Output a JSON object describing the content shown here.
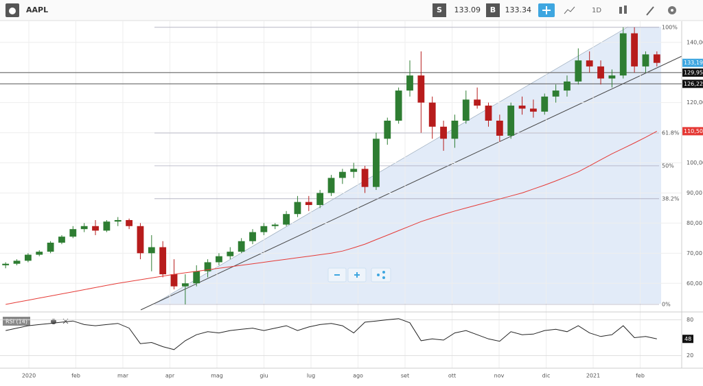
{
  "toolbar": {
    "ticker": "AAPL",
    "sell": {
      "label": "S",
      "price": "133.09"
    },
    "buy": {
      "label": "B",
      "price": "133.34"
    },
    "interval": "1D"
  },
  "chart_data": {
    "type": "candlestick",
    "up_color": "#2e7d32",
    "down_color": "#b71c1c",
    "candles": [
      [
        66,
        67,
        65,
        66.5
      ],
      [
        66.5,
        68,
        66,
        67.5
      ],
      [
        67.5,
        70,
        67,
        69.5
      ],
      [
        69.5,
        71,
        69,
        70.5
      ],
      [
        70.5,
        74,
        70,
        73.5
      ],
      [
        73.5,
        76,
        73,
        75.5
      ],
      [
        75.5,
        79,
        75,
        78
      ],
      [
        78,
        80,
        77,
        79
      ],
      [
        79,
        81,
        76,
        77.5
      ],
      [
        77.5,
        81,
        77,
        80.5
      ],
      [
        80.5,
        82,
        79,
        81
      ],
      [
        81,
        81.5,
        78,
        79
      ],
      [
        79,
        80,
        68,
        70
      ],
      [
        70,
        76,
        64,
        72
      ],
      [
        72,
        74,
        62,
        63
      ],
      [
        63,
        68,
        58,
        59
      ],
      [
        59,
        63,
        53,
        60
      ],
      [
        60,
        66,
        59,
        64
      ],
      [
        64,
        68,
        62,
        67
      ],
      [
        67,
        70,
        66,
        69
      ],
      [
        69,
        72,
        68,
        70.5
      ],
      [
        70.5,
        75,
        70,
        74
      ],
      [
        74,
        78,
        73,
        77
      ],
      [
        77,
        80,
        76,
        79
      ],
      [
        79,
        80,
        78,
        79.5
      ],
      [
        79.5,
        84,
        79,
        83
      ],
      [
        83,
        89,
        82,
        87
      ],
      [
        87,
        89,
        84,
        86
      ],
      [
        86,
        91,
        85,
        90
      ],
      [
        90,
        96,
        89,
        95
      ],
      [
        95,
        98,
        93,
        97
      ],
      [
        97,
        100,
        95,
        98
      ],
      [
        98,
        99,
        90,
        92
      ],
      [
        92,
        110,
        91,
        108
      ],
      [
        108,
        115,
        106,
        114
      ],
      [
        114,
        125,
        113,
        124
      ],
      [
        124,
        134,
        122,
        129
      ],
      [
        129,
        137,
        110,
        120
      ],
      [
        120,
        122,
        108,
        112
      ],
      [
        112,
        114,
        104,
        108
      ],
      [
        108,
        116,
        105,
        114
      ],
      [
        114,
        124,
        113,
        121
      ],
      [
        121,
        125,
        118,
        119
      ],
      [
        119,
        120,
        112,
        114
      ],
      [
        114,
        116,
        107,
        109
      ],
      [
        109,
        120,
        108,
        119
      ],
      [
        119,
        122,
        116,
        118
      ],
      [
        118,
        121,
        115,
        117
      ],
      [
        117,
        123,
        116,
        122
      ],
      [
        122,
        126,
        120,
        124
      ],
      [
        124,
        129,
        122,
        127
      ],
      [
        127,
        138,
        126,
        134
      ],
      [
        134,
        137,
        130,
        132
      ],
      [
        132,
        134,
        126,
        128
      ],
      [
        128,
        131,
        125,
        129
      ],
      [
        129,
        145,
        128,
        143
      ],
      [
        143,
        145,
        130,
        132
      ],
      [
        132,
        137,
        130,
        136
      ],
      [
        136,
        137,
        132,
        133.19
      ]
    ],
    "ylim": [
      50.5,
      147
    ],
    "yticks": [
      {
        "value": 60,
        "label": "60,00"
      },
      {
        "value": 70,
        "label": "70,00"
      },
      {
        "value": 80,
        "label": "80,00"
      },
      {
        "value": 90,
        "label": "90,00"
      },
      {
        "value": 100,
        "label": "100,00"
      },
      {
        "value": 110,
        "label": "110,00"
      },
      {
        "value": 120,
        "label": "120,00"
      },
      {
        "value": 130,
        "label": "130,00"
      },
      {
        "value": 140,
        "label": "140,00"
      }
    ],
    "x_labels": [
      "2020",
      "feb",
      "mar",
      "apr",
      "mag",
      "giu",
      "lug",
      "ago",
      "set",
      "ott",
      "nov",
      "dic",
      "2021",
      "feb"
    ],
    "ma": {
      "color": "#e53935",
      "values": [
        53,
        53.7,
        54.4,
        55.1,
        55.8,
        56.5,
        57.2,
        57.9,
        58.6,
        59.3,
        60,
        60.6,
        61.2,
        61.8,
        62.4,
        63,
        63.5,
        64,
        64.5,
        65,
        65.5,
        66,
        66.5,
        67,
        67.5,
        68,
        68.5,
        69,
        69.5,
        70,
        70.7,
        71.8,
        73,
        74.5,
        76,
        77.5,
        79,
        80.5,
        81.7,
        82.9,
        84,
        85,
        86,
        87,
        88,
        89,
        90,
        91.3,
        92.6,
        94,
        95.5,
        97,
        99,
        101,
        103,
        104.8,
        106.6,
        108.5,
        110.5
      ],
      "last": {
        "value": 110.5,
        "label": "110,50"
      }
    },
    "last_price": {
      "value": 133.19,
      "label": "133,19"
    },
    "levels": [
      {
        "value": 129.95,
        "label": "129,95"
      },
      {
        "value": 126.22,
        "label": "126,22"
      }
    ],
    "fib": [
      {
        "level": 145,
        "label": "100%"
      },
      {
        "level": 109.9,
        "label": "61.8%"
      },
      {
        "level": 99,
        "label": "50%"
      },
      {
        "level": 88.1,
        "label": "38.2%"
      },
      {
        "level": 53,
        "label": "0%"
      }
    ],
    "rsi": {
      "label": "RSI (14)",
      "ylim": [
        0,
        92
      ],
      "yticks": [
        20,
        80
      ],
      "values": [
        62,
        66,
        70,
        72,
        74,
        76,
        78,
        72,
        70,
        72,
        74,
        66,
        40,
        42,
        35,
        30,
        45,
        55,
        60,
        58,
        62,
        64,
        66,
        62,
        66,
        70,
        62,
        68,
        72,
        74,
        70,
        58,
        76,
        78,
        80,
        82,
        75,
        45,
        48,
        46,
        58,
        62,
        55,
        48,
        44,
        60,
        55,
        56,
        62,
        64,
        60,
        70,
        58,
        52,
        55,
        70,
        50,
        52,
        48
      ],
      "last": 48
    }
  }
}
